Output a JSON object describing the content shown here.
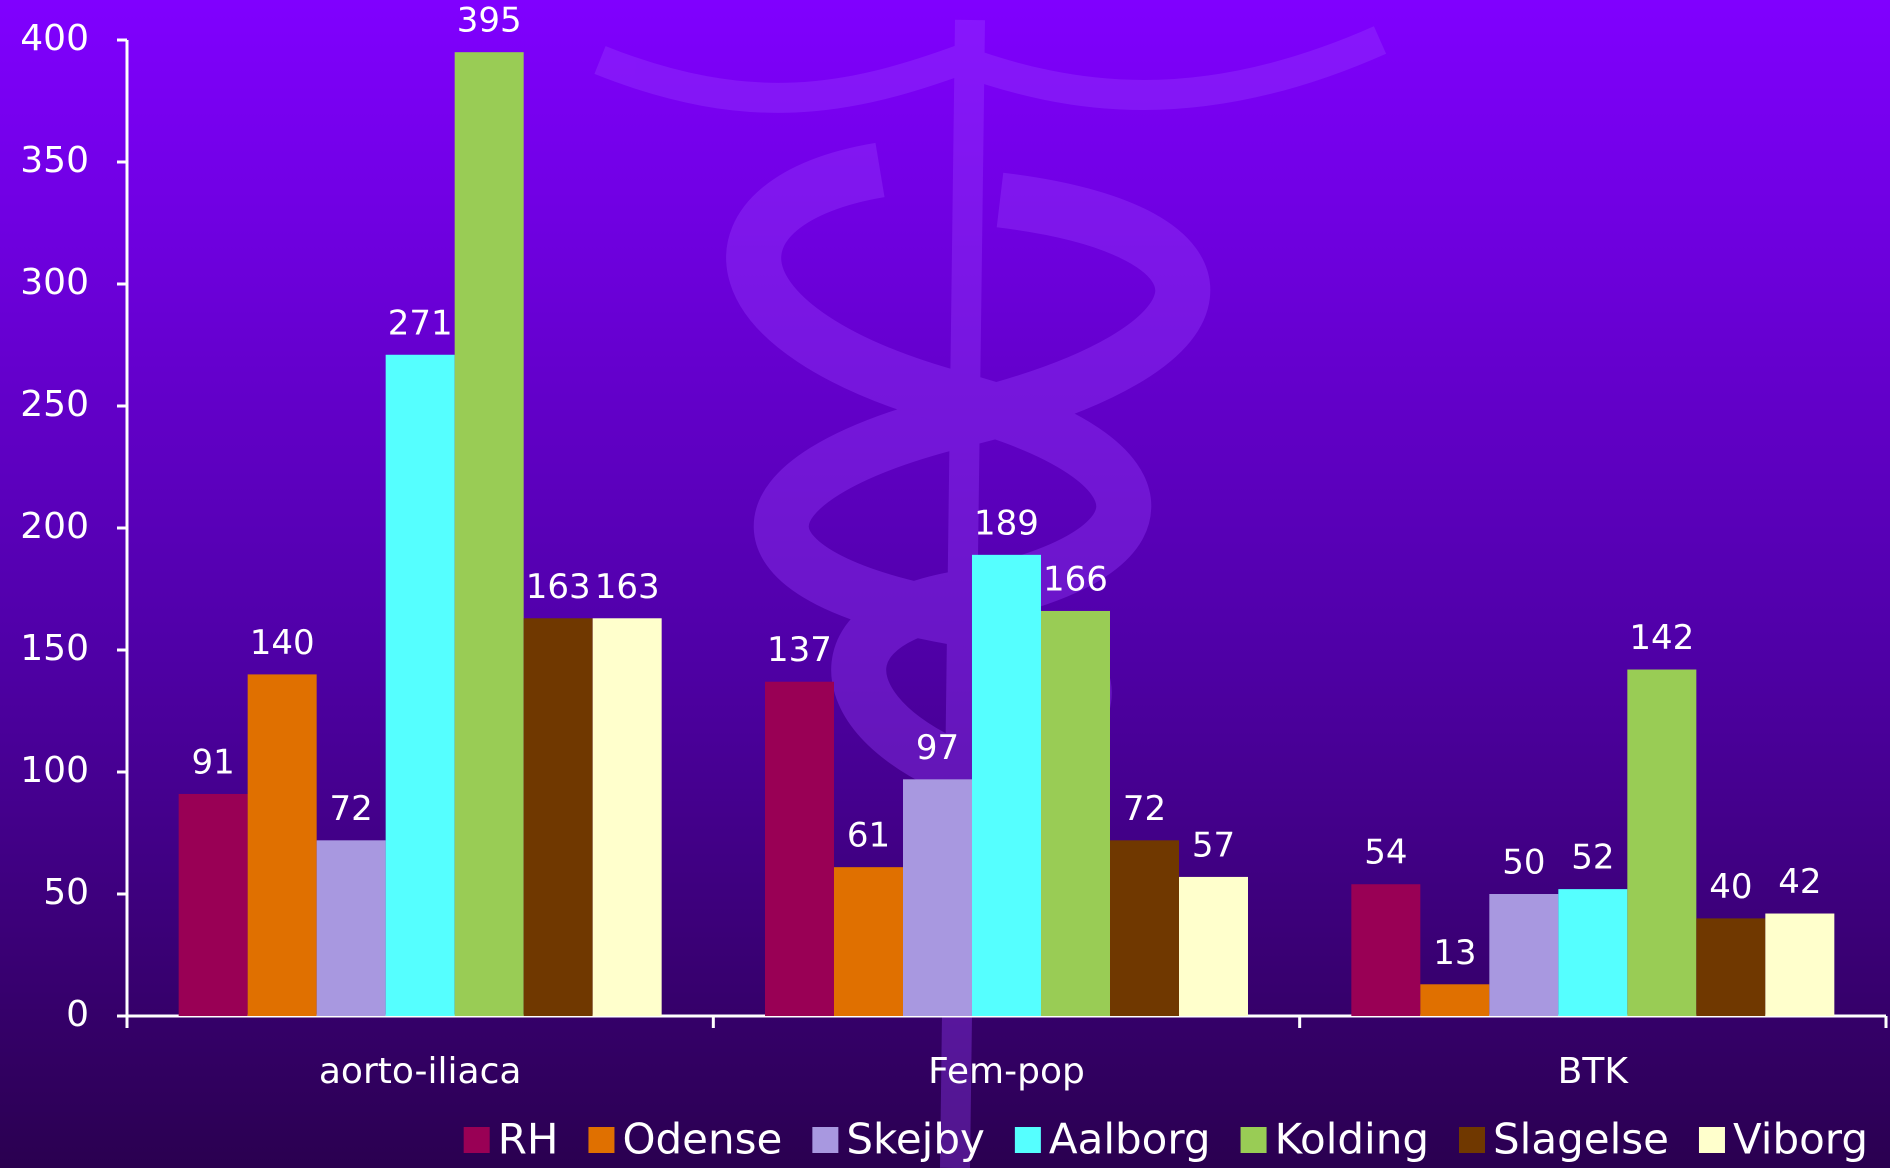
{
  "chart_data": {
    "type": "bar",
    "categories": [
      "aorto-iliaca",
      "Fem-pop",
      "BTK"
    ],
    "series": [
      {
        "name": "RH",
        "color": "#990055",
        "values": [
          91,
          137,
          54
        ]
      },
      {
        "name": "Odense",
        "color": "#e07000",
        "values": [
          140,
          61,
          13
        ]
      },
      {
        "name": "Skejby",
        "color": "#a898e0",
        "values": [
          72,
          97,
          50
        ]
      },
      {
        "name": "Aalborg",
        "color": "#55ffff",
        "values": [
          271,
          189,
          52
        ]
      },
      {
        "name": "Kolding",
        "color": "#99cc55",
        "values": [
          395,
          166,
          142
        ]
      },
      {
        "name": "Slagelse",
        "color": "#703800",
        "values": [
          163,
          72,
          40
        ]
      },
      {
        "name": "Viborg",
        "color": "#ffffcc",
        "values": [
          163,
          57,
          42
        ]
      }
    ],
    "ylim": [
      0,
      400
    ],
    "yticks": [
      0,
      50,
      100,
      150,
      200,
      250,
      300,
      350,
      400
    ],
    "legend": "bottom"
  }
}
